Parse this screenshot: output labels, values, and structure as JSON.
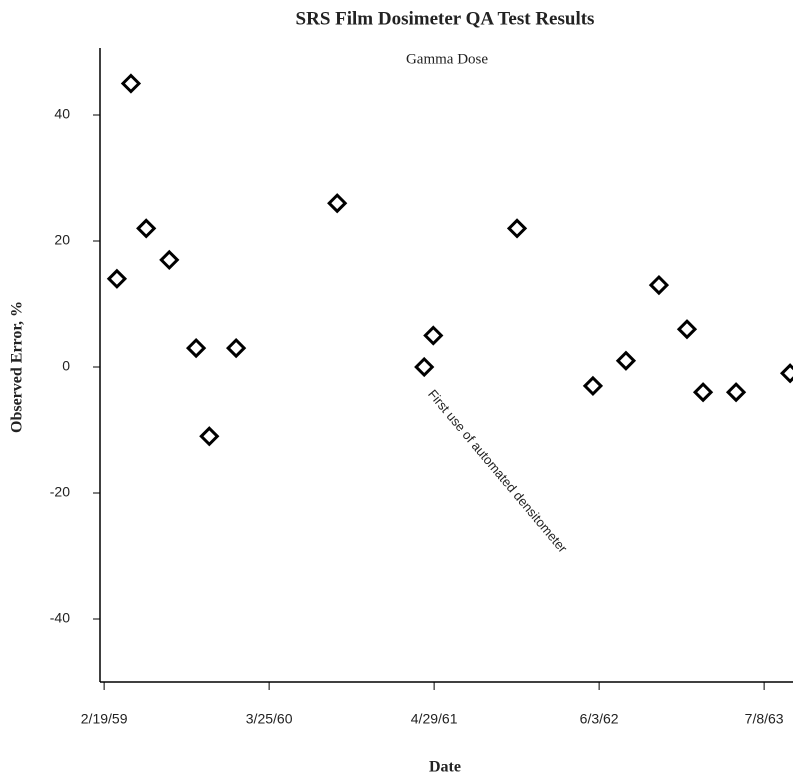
{
  "chart_data": {
    "type": "scatter",
    "title": "SRS Film Dosimeter QA Test Results",
    "subtitle": "Gamma Dose",
    "x_label": "Date",
    "y_label": "Observed Error, %",
    "annotation": "First use of automated densitometer",
    "x": [
      "3/22/59",
      "4/25/59",
      "6/1/59",
      "7/27/59",
      "9/30/59",
      "11/1/59",
      "1/5/60",
      "9/6/60",
      "4/5/61",
      "4/27/61",
      "11/16/61",
      "5/19/62",
      "8/7/62",
      "10/26/62",
      "1/2/63",
      "2/10/63",
      "5/1/63",
      "9/9/63"
    ],
    "values": [
      14,
      45,
      22,
      17,
      3,
      -11,
      3,
      26,
      0,
      5,
      22,
      -3,
      1,
      13,
      6,
      -4,
      -4,
      -1
    ],
    "color": "#000000",
    "xlim": [
      "2/9/59",
      "9/16/63"
    ],
    "xticks": [
      "2/19/59",
      "3/25/60",
      "4/29/61",
      "6/3/62",
      "7/8/63"
    ],
    "ylim": [
      -50,
      50
    ],
    "yticks": [
      -40,
      -20,
      0,
      20,
      40
    ]
  }
}
